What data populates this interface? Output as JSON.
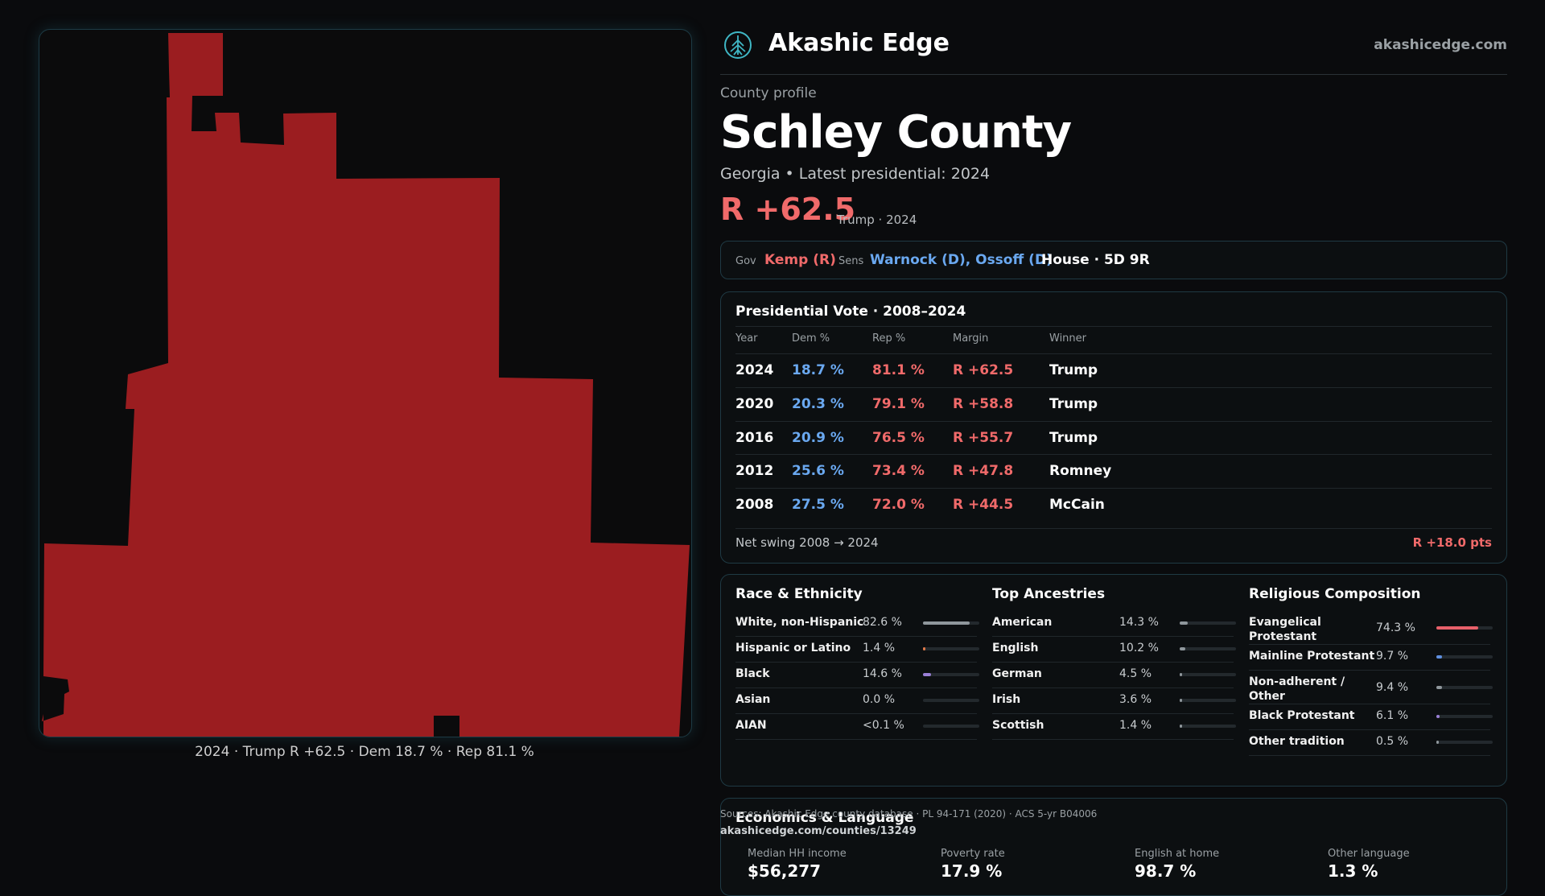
{
  "map": {
    "caption": "2024 · Trump R +62.5 · Dem 18.7 % · Rep 81.1 %",
    "fill_color": "#9b1d20"
  },
  "header": {
    "brand": "Akashic Edge",
    "site": "akashicedge.com",
    "logo_icon": "tree-emblem-icon"
  },
  "profile": {
    "eyebrow": "County profile",
    "title": "Schley County",
    "subtitle": "Georgia • Latest presidential: 2024",
    "margin": "R +62.5",
    "margin_note": "Trump · 2024"
  },
  "officials": {
    "gov_label": "Gov",
    "gov_value": "Kemp (R)",
    "sens_label": "Sens",
    "sens_value": "Warnock (D), Ossoff (D)",
    "house": "House · 5D 9R"
  },
  "presidential": {
    "title": "Presidential Vote · 2008–2024",
    "headers": [
      "Year",
      "Dem %",
      "Rep %",
      "Margin",
      "Winner"
    ],
    "rows": [
      [
        "2024",
        "18.7 %",
        "81.1 %",
        "R +62.5",
        "Trump"
      ],
      [
        "2020",
        "20.3 %",
        "79.1 %",
        "R +58.8",
        "Trump"
      ],
      [
        "2016",
        "20.9 %",
        "76.5 %",
        "R +55.7",
        "Trump"
      ],
      [
        "2012",
        "25.6 %",
        "73.4 %",
        "R +47.8",
        "Romney"
      ],
      [
        "2008",
        "27.5 %",
        "72.0 %",
        "R +44.5",
        "McCain"
      ]
    ],
    "swing_label": "Net swing 2008 → 2024",
    "swing_value": "R +18.0 pts"
  },
  "race": {
    "title": "Race & Ethnicity",
    "rows": [
      {
        "name": "White, non-Hispanic",
        "pct": "82.6 %",
        "value": 0.826,
        "color": "#8f979c"
      },
      {
        "name": "Hispanic or Latino",
        "pct": "1.4 %",
        "value": 0.014,
        "color": "#e07a4a"
      },
      {
        "name": "Black",
        "pct": "14.6 %",
        "value": 0.146,
        "color": "#9a7fd6"
      },
      {
        "name": "Asian",
        "pct": "0.0 %",
        "value": 0.0,
        "color": "#6aa0d8"
      },
      {
        "name": "AIAN",
        "pct": "<0.1 %",
        "value": 0.0,
        "color": "#6aa0d8"
      }
    ]
  },
  "ancestry": {
    "title": "Top Ancestries",
    "rows": [
      {
        "name": "American",
        "pct": "14.3 %",
        "value": 0.143,
        "color": "#8f979c"
      },
      {
        "name": "English",
        "pct": "10.2 %",
        "value": 0.102,
        "color": "#8f979c"
      },
      {
        "name": "German",
        "pct": "4.5 %",
        "value": 0.045,
        "color": "#8f979c"
      },
      {
        "name": "Irish",
        "pct": "3.6 %",
        "value": 0.036,
        "color": "#8f979c"
      },
      {
        "name": "Scottish",
        "pct": "1.4 %",
        "value": 0.014,
        "color": "#8f979c"
      }
    ]
  },
  "religion": {
    "title": "Religious Composition",
    "rows": [
      {
        "name": "Evangelical Protestant",
        "pct": "74.3 %",
        "value": 0.743,
        "color": "#e8606a"
      },
      {
        "name": "Mainline Protestant",
        "pct": "9.7 %",
        "value": 0.097,
        "color": "#5f8fe0"
      },
      {
        "name": "Non-adherent / Other",
        "pct": "9.4 %",
        "value": 0.094,
        "color": "#8f979c"
      },
      {
        "name": "Black Protestant",
        "pct": "6.1 %",
        "value": 0.061,
        "color": "#9a7fd6"
      },
      {
        "name": "Other tradition",
        "pct": "0.5 %",
        "value": 0.005,
        "color": "#8f979c"
      }
    ]
  },
  "economics": {
    "title": "Economics & Language",
    "labels": [
      "Median HH income",
      "Poverty rate",
      "English at home",
      "Other language"
    ],
    "values": [
      "$56,277",
      "17.9 %",
      "98.7 %",
      "1.3 %"
    ]
  },
  "footer": {
    "source": "Sources: Akashic Edge county database · PL 94-171 (2020) · ACS 5-yr B04006",
    "url": "akashicedge.com/counties/13249"
  },
  "colors": {
    "dem": "#6aa8f0",
    "rep": "#f06a6a",
    "accent_border": "#1f3a44"
  }
}
